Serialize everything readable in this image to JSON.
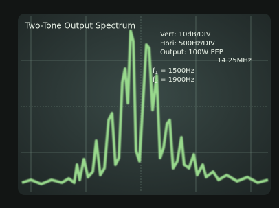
{
  "display": {
    "title": "Two-Tone Output Spectrum",
    "vert": "Vert:  10dB/DIV",
    "hori": "Hori:  500Hz/DIV",
    "output": "Output:  100W PEP",
    "frequency": "14.25MHz",
    "tones": [
      {
        "symbol": "f",
        "subscript": "1",
        "text": " = 1500Hz"
      },
      {
        "symbol": "f",
        "subscript": "2",
        "text": " = 1900Hz"
      }
    ]
  }
}
